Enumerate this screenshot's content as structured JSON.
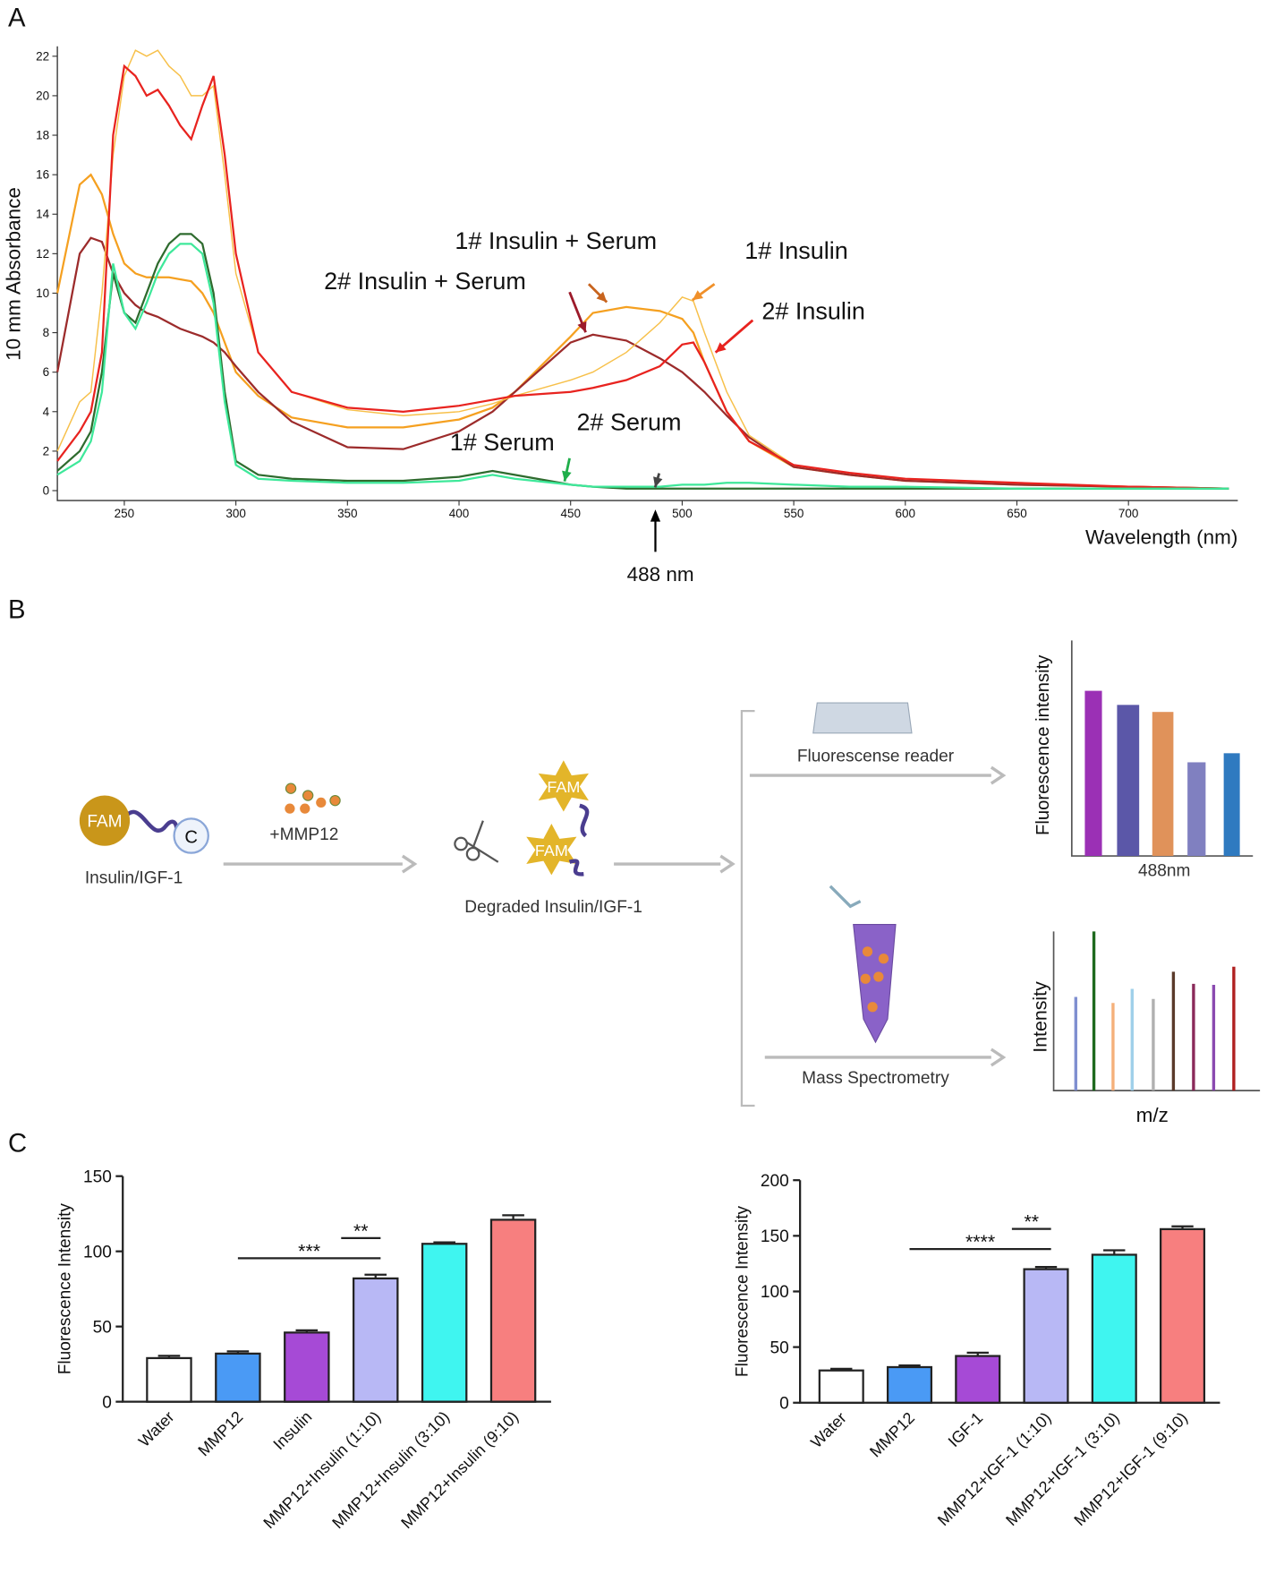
{
  "panel_labels": [
    "A",
    "B",
    "C"
  ],
  "chart_data": [
    {
      "type": "line",
      "x_label": "Wavelength (nm)",
      "y_label": "10 mm Absorbance",
      "xlim": [
        220,
        749
      ],
      "xticks": [
        250,
        300,
        350,
        400,
        450,
        500,
        550,
        600,
        650,
        700
      ],
      "ylim": [
        -0.5,
        22.5
      ],
      "yticks": [
        0,
        2,
        4,
        6,
        8,
        10,
        12,
        14,
        16,
        18,
        20,
        22
      ],
      "x": [
        220,
        230,
        235,
        240,
        245,
        250,
        255,
        260,
        265,
        270,
        275,
        280,
        285,
        290,
        295,
        300,
        310,
        325,
        350,
        375,
        400,
        415,
        425,
        450,
        460,
        475,
        490,
        500,
        505,
        510,
        520,
        530,
        550,
        575,
        600,
        650,
        700,
        745
      ],
      "series": [
        {
          "name": "1# Insulin + Serum",
          "color": "#f5a020",
          "width": 2,
          "values": [
            10,
            15.5,
            16,
            15,
            13,
            11.5,
            11,
            10.8,
            10.8,
            10.8,
            10.7,
            10.6,
            10,
            9,
            7.5,
            6,
            4.8,
            3.7,
            3.2,
            3.2,
            3.6,
            4.2,
            5,
            7.8,
            9,
            9.3,
            9.1,
            8.7,
            8,
            6.5,
            4,
            2.5,
            1.2,
            0.8,
            0.5,
            0.3,
            0.2,
            0.1
          ]
        },
        {
          "name": "2# Insulin + Serum",
          "color": "#9c2b2b",
          "width": 2,
          "values": [
            6,
            12,
            12.8,
            12.6,
            11,
            10,
            9.4,
            9,
            8.8,
            8.5,
            8.2,
            8,
            7.8,
            7.5,
            7,
            6.3,
            5,
            3.5,
            2.2,
            2.1,
            3,
            4,
            5,
            7.5,
            7.9,
            7.6,
            6.7,
            6,
            5.5,
            5,
            3.8,
            2.7,
            1.2,
            0.8,
            0.5,
            0.3,
            0.2,
            0.1
          ]
        },
        {
          "name": "1# Insulin",
          "color": "#f7c04a",
          "width": 1.3,
          "values": [
            2,
            4.5,
            5,
            10,
            17,
            21,
            22.3,
            22,
            22.3,
            21.5,
            21,
            20,
            20,
            20.5,
            16,
            11,
            7,
            5,
            4.1,
            3.8,
            4,
            4.4,
            4.8,
            5.6,
            6,
            7,
            8.5,
            9.8,
            9.6,
            8,
            5,
            2.8,
            1.3,
            0.9,
            0.6,
            0.4,
            0.2,
            0.1
          ]
        },
        {
          "name": "2# Insulin",
          "color": "#e8231f",
          "width": 2,
          "values": [
            1.5,
            3,
            4,
            7,
            18,
            21.5,
            21,
            20,
            20.3,
            19.5,
            18.5,
            17.8,
            19.5,
            21,
            17,
            12,
            7,
            5,
            4.2,
            4,
            4.3,
            4.6,
            4.8,
            5,
            5.2,
            5.6,
            6.3,
            7.4,
            7.5,
            6.5,
            4,
            2.5,
            1.3,
            0.9,
            0.6,
            0.4,
            0.2,
            0.1
          ]
        },
        {
          "name": "1# Serum",
          "color": "#2e6b2e",
          "width": 2,
          "values": [
            1,
            2,
            3,
            6,
            11,
            9,
            8.5,
            10,
            11.5,
            12.5,
            13,
            13,
            12.5,
            10,
            5,
            1.5,
            0.8,
            0.6,
            0.5,
            0.5,
            0.7,
            1,
            0.8,
            0.3,
            0.2,
            0.1,
            0.1,
            0.1,
            0.1,
            0.1,
            0.1,
            0.1,
            0.1,
            0.1,
            0.1,
            0.1,
            0.1,
            0.1
          ]
        },
        {
          "name": "2# Serum",
          "color": "#3ee89a",
          "width": 2,
          "values": [
            0.8,
            1.5,
            2.5,
            5,
            11.5,
            9,
            8.2,
            9.5,
            11,
            12,
            12.5,
            12.5,
            12,
            9.5,
            4.5,
            1.3,
            0.6,
            0.5,
            0.4,
            0.4,
            0.5,
            0.8,
            0.6,
            0.3,
            0.2,
            0.2,
            0.2,
            0.3,
            0.3,
            0.3,
            0.4,
            0.4,
            0.3,
            0.2,
            0.2,
            0.1,
            0.1,
            0.1
          ]
        }
      ],
      "annotations": [
        {
          "text": "488 nm",
          "x": 488
        }
      ]
    },
    {
      "type": "bar",
      "y_label": "Fluorescence Intensity",
      "ylim": [
        0,
        150
      ],
      "yticks": [
        0,
        50,
        100,
        150
      ],
      "categories": [
        "Water",
        "MMP12",
        "Insulin",
        "MMP12+Insulin (1:10)",
        "MMP12+Insulin (3:10)",
        "MMP12+Insulin (9:10)"
      ],
      "values": [
        29,
        32,
        46,
        82,
        105,
        121
      ],
      "errors": [
        1.5,
        1.5,
        1.5,
        2.5,
        1,
        3
      ],
      "colors": [
        "#ffffff",
        "#4a9af5",
        "#a64ad6",
        "#b8b8f5",
        "#3ff5f0",
        "#f77f7f"
      ],
      "annotations": [
        {
          "text": "***",
          "from": 1,
          "to": 3
        },
        {
          "text": "**",
          "from": 2,
          "to": 3
        }
      ]
    },
    {
      "type": "bar",
      "y_label": "Fluorescence Intensity",
      "ylim": [
        0,
        200
      ],
      "yticks": [
        0,
        50,
        100,
        150,
        200
      ],
      "categories": [
        "Water",
        "MMP12",
        "IGF-1",
        "MMP12+IGF-1 (1:10)",
        "MMP12+IGF-1 (3:10)",
        "MMP12+IGF-1 (9:10)"
      ],
      "values": [
        29,
        32,
        42,
        120,
        133,
        156
      ],
      "errors": [
        1.5,
        1.5,
        3,
        2,
        4,
        2.5
      ],
      "colors": [
        "#ffffff",
        "#4a9af5",
        "#a64ad6",
        "#b8b8f5",
        "#3ff5f0",
        "#f77f7f"
      ],
      "annotations": [
        {
          "text": "****",
          "from": 1,
          "to": 3
        },
        {
          "text": "**",
          "from": 2,
          "to": 3
        }
      ]
    }
  ],
  "diagram": {
    "fam_labels": [
      "FAM",
      "FAM",
      "FAM"
    ],
    "c_label": "C",
    "substrate": "Insulin/IGF-1",
    "enzyme": "+MMP12",
    "product": "Degraded Insulin/IGF-1",
    "reader": "Fluorescense reader",
    "mass_spec": "Mass Spectrometry",
    "fluor_axis": "Fluorescence intensity",
    "fluor_x": "488nm",
    "ms_axis": "Intensity",
    "ms_x": "m/z"
  }
}
